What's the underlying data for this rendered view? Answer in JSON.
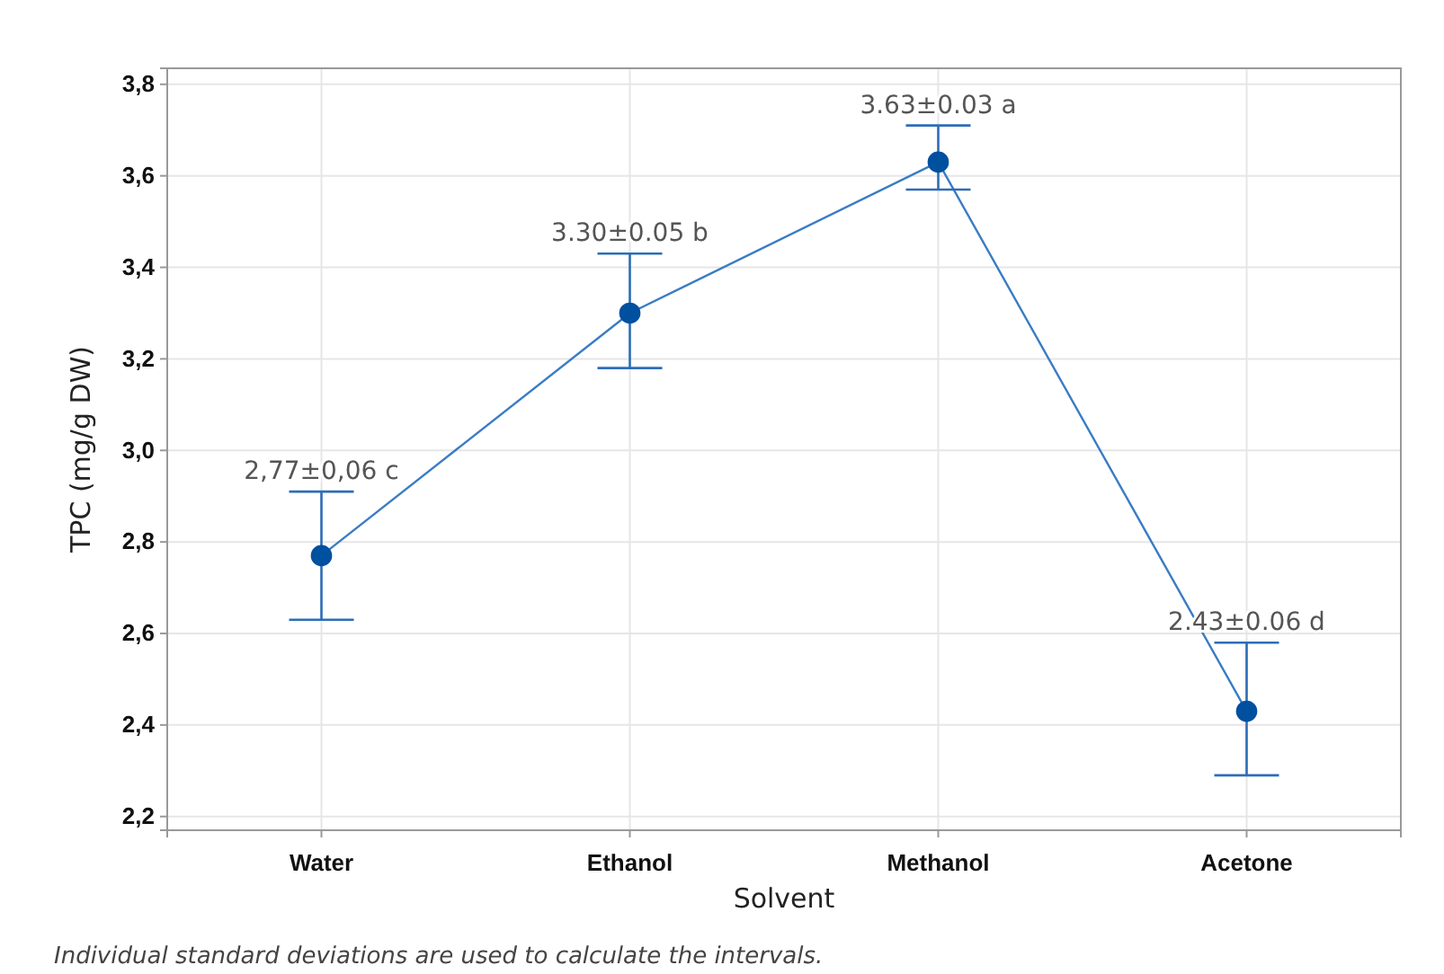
{
  "chart_data": {
    "type": "line",
    "xlabel": "Solvent",
    "ylabel": "TPC (mg/g DW)",
    "categories": [
      "Water",
      "Ethanol",
      "Methanol",
      "Acetone"
    ],
    "series": [
      {
        "color": "#0050a0",
        "values": [
          2.77,
          3.3,
          3.63,
          2.43
        ],
        "errors": [
          [
            2.63,
            2.91
          ],
          [
            3.18,
            3.43
          ],
          [
            3.57,
            3.71
          ],
          [
            2.29,
            2.58
          ]
        ],
        "value_labels": [
          "2,77±0,06 c",
          "3.30±0.05 b",
          "3.63±0.03 a",
          "2.43±0.06 d"
        ]
      }
    ],
    "ylim": [
      2.17,
      3.835
    ],
    "yticks": [
      {
        "value": 2.2,
        "label": "2,2"
      },
      {
        "value": 2.4,
        "label": "2,4"
      },
      {
        "value": 2.6,
        "label": "2,6"
      },
      {
        "value": 2.8,
        "label": "2,8"
      },
      {
        "value": 3.0,
        "label": "3,0"
      },
      {
        "value": 3.2,
        "label": "3,2"
      },
      {
        "value": 3.4,
        "label": "3,4"
      },
      {
        "value": 3.6,
        "label": "3,6"
      },
      {
        "value": 3.8,
        "label": "3,8"
      }
    ],
    "grid": true,
    "marker": "circle",
    "line_style": "solid",
    "annotations": [
      "Individual standard deviations are used to calculate the intervals."
    ]
  }
}
